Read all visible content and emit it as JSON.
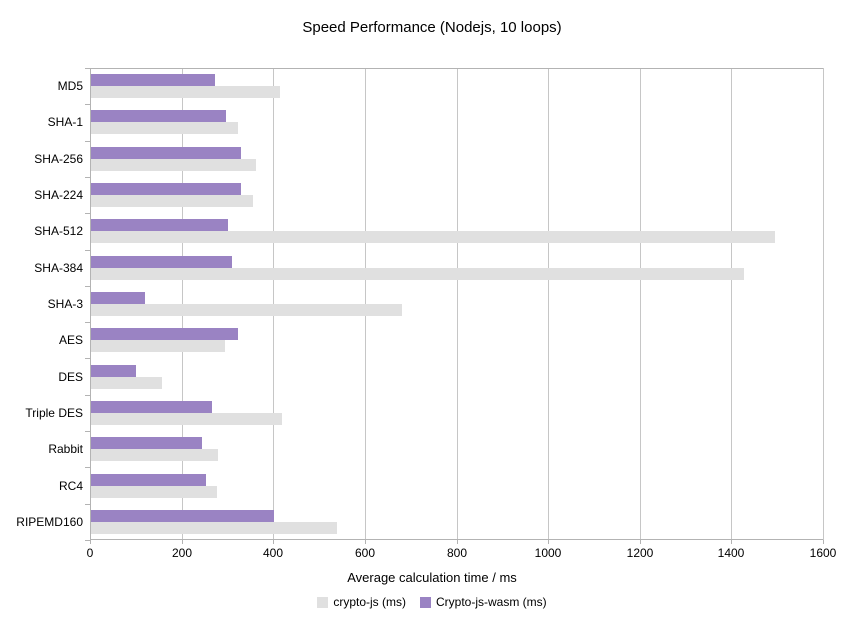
{
  "chart_data": {
    "type": "bar",
    "orientation": "horizontal",
    "title": "Speed Performance (Nodejs, 10 loops)",
    "xlabel": "Average calculation time / ms",
    "ylabel": "",
    "categories": [
      "MD5",
      "SHA-1",
      "SHA-256",
      "SHA-224",
      "SHA-512",
      "SHA-384",
      "SHA-3",
      "AES",
      "DES",
      "Triple DES",
      "Rabbit",
      "RC4",
      "RIPEMD160"
    ],
    "series": [
      {
        "name": "crypto-js (ms)",
        "color": "#e0e0e0",
        "values": [
          413,
          320,
          360,
          353,
          1493,
          1425,
          678,
          292,
          155,
          416,
          278,
          275,
          536
        ]
      },
      {
        "name": "Crypto-js-wasm (ms)",
        "color": "#9a83c3",
        "values": [
          270,
          295,
          328,
          328,
          300,
          308,
          118,
          320,
          98,
          265,
          242,
          250,
          400
        ]
      }
    ],
    "bar_order_top_to_bottom": [
      "Crypto-js-wasm (ms)",
      "crypto-js (ms)"
    ],
    "xlim": [
      0,
      1600
    ],
    "xticks": [
      0,
      200,
      400,
      600,
      800,
      1000,
      1200,
      1400,
      1600
    ],
    "grid": true,
    "legend_position": "bottom",
    "colors": {
      "background": "#ffffff",
      "axis": "#b3b3b3",
      "gridline": "#c6c6c6",
      "text": "#000000"
    }
  }
}
